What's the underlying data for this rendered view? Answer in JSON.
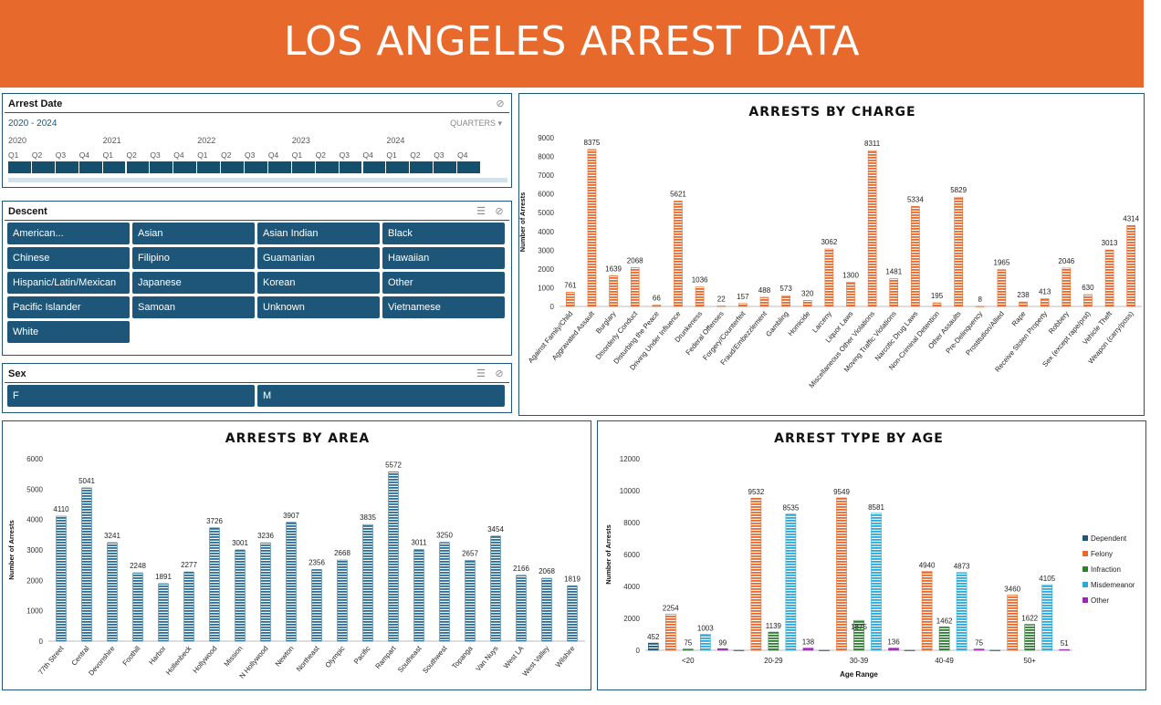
{
  "header": {
    "title": "LOS ANGELES ARREST DATA"
  },
  "date_slicer": {
    "title": "Arrest Date",
    "range_label": "2020 - 2024",
    "level_label": "QUARTERS",
    "level_caret": "▾",
    "years": [
      "2020",
      "2021",
      "2022",
      "2023",
      "2024"
    ],
    "quarters": [
      "Q1",
      "Q2",
      "Q3",
      "Q4"
    ],
    "clear_icon": "clear-filter-icon"
  },
  "descent_slicer": {
    "title": "Descent",
    "items": [
      "American...",
      "Asian",
      "Asian Indian",
      "Black",
      "Chinese",
      "Filipino",
      "Guamanian",
      "Hawaiian",
      "Hispanic/Latin/Mexican",
      "Japanese",
      "Korean",
      "Other",
      "Pacific Islander",
      "Samoan",
      "Unknown",
      "Vietnamese",
      "White"
    ],
    "multiselect_icon": "multi-select-icon",
    "clear_icon": "clear-filter-icon"
  },
  "sex_slicer": {
    "title": "Sex",
    "items": [
      "F",
      "M"
    ],
    "multiselect_icon": "multi-select-icon",
    "clear_icon": "clear-filter-icon"
  },
  "chart_data": [
    {
      "id": "charge",
      "type": "bar",
      "title": "ARRESTS BY CHARGE",
      "xlabel": "",
      "ylabel": "Number of Arrests",
      "ylim": [
        0,
        9000
      ],
      "yticks": [
        "0",
        "1000",
        "2000",
        "3000",
        "4000",
        "5000",
        "6000",
        "7000",
        "8000",
        "9000"
      ],
      "color": "#e8692c",
      "categories": [
        "Against Family/Child",
        "Aggravated Assault",
        "Burglary",
        "Disorderly Conduct",
        "Disturbing the Peace",
        "Driving Under Influence",
        "Drunkeness",
        "Federal Offenses",
        "Forgery/Counterfeit",
        "Fraud/Embezzlement",
        "Gambling",
        "Homicide",
        "Larceny",
        "Liquor Laws",
        "Miscellaneous Other Violations",
        "Moving Traffic Violations",
        "Narcotic Drug Laws",
        "Non-Criminal Detention",
        "Other Assaults",
        "Pre-Delinquency",
        "Prostitution/Allied",
        "Rape",
        "Receive Stolen Property",
        "Robbery",
        "Sex (except rape/prst)",
        "Vehicle Theft",
        "Weapon (carry/poss)"
      ],
      "values": [
        761,
        8375,
        1639,
        2068,
        66,
        5621,
        1036,
        22,
        157,
        488,
        573,
        320,
        3062,
        1300,
        8311,
        1481,
        5334,
        195,
        5829,
        8,
        1965,
        238,
        413,
        2046,
        630,
        3013,
        4314
      ]
    },
    {
      "id": "area",
      "type": "bar",
      "title": "ARRESTS BY AREA",
      "xlabel": "",
      "ylabel": "Number of Arrests",
      "ylim": [
        0,
        6000
      ],
      "yticks": [
        "0",
        "1000",
        "2000",
        "3000",
        "4000",
        "5000",
        "6000"
      ],
      "color": "#2a6e97",
      "categories": [
        "77th Street",
        "Central",
        "Devonshire",
        "Foothill",
        "Harbor",
        "Hollenbeck",
        "Hollywood",
        "Mission",
        "N Hollywood",
        "Newton",
        "Northeast",
        "Olympic",
        "Pacific",
        "Rampart",
        "Southeast",
        "Southwest",
        "Topanga",
        "Van Nuys",
        "West LA",
        "West Valley",
        "Wilshire"
      ],
      "values": [
        4110,
        5041,
        3241,
        2248,
        1891,
        2277,
        3726,
        3001,
        3236,
        3907,
        2356,
        2668,
        3835,
        5572,
        3011,
        3250,
        2657,
        3454,
        2166,
        2068,
        1819
      ]
    },
    {
      "id": "age",
      "type": "bar",
      "title": "ARREST TYPE BY AGE",
      "xlabel": "Age Range",
      "ylabel": "Number of Arrests",
      "ylim": [
        0,
        12000
      ],
      "yticks": [
        "0",
        "2000",
        "4000",
        "6000",
        "8000",
        "10000",
        "12000"
      ],
      "legend": "right",
      "categories": [
        "<20",
        "20-29",
        "30-39",
        "40-49",
        "50+"
      ],
      "series": [
        {
          "name": "Dependent",
          "color": "#1f5777",
          "values": [
            452,
            0,
            0,
            0,
            0
          ],
          "labels": [
            "452",
            "",
            "",
            "",
            ""
          ]
        },
        {
          "name": "Felony",
          "color": "#e8692c",
          "values": [
            2254,
            9532,
            9549,
            4940,
            3460
          ],
          "labels": [
            "2254",
            "9532",
            "9549",
            "4940",
            "3460"
          ]
        },
        {
          "name": "Infraction",
          "color": "#2e7d32",
          "values": [
            75,
            1139,
            1875,
            1462,
            1622
          ],
          "labels": [
            "75",
            "1139",
            "1875",
            "1462",
            "1622"
          ]
        },
        {
          "name": "Misdemeanor",
          "color": "#29a9d9",
          "values": [
            1003,
            8535,
            8581,
            4873,
            4105
          ],
          "labels": [
            "1003",
            "8535",
            "8581",
            "4873",
            "4105"
          ]
        },
        {
          "name": "Other",
          "color": "#9c27b0",
          "values": [
            99,
            138,
            136,
            75,
            51
          ],
          "labels": [
            "99",
            "138",
            "136",
            "75",
            "51"
          ]
        }
      ]
    }
  ]
}
